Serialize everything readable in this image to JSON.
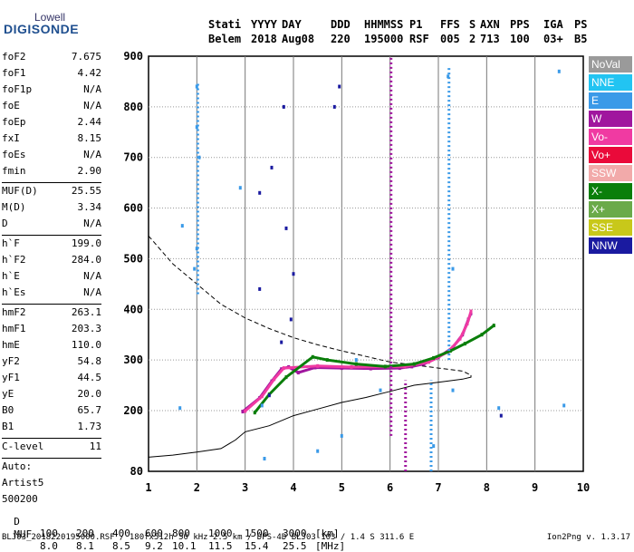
{
  "logo": {
    "line1": "Lowell",
    "line2": "DIGISONDE"
  },
  "header": {
    "labels": [
      "Stati",
      "YYYY",
      "DAY",
      "DDD",
      "HHMMSS",
      "P1",
      "FFS",
      "S",
      "AXN",
      "PPS",
      "IGA",
      "PS"
    ],
    "values": [
      "Belem",
      "2018",
      "Aug08",
      "220",
      "195000",
      "RSF",
      "005",
      "2",
      "713",
      "100",
      "03+",
      "B5"
    ]
  },
  "params": [
    {
      "group": [
        {
          "name": "foF2",
          "value": "7.675"
        },
        {
          "name": "foF1",
          "value": "4.42"
        },
        {
          "name": "foF1p",
          "value": "N/A"
        },
        {
          "name": "foE",
          "value": "N/A"
        },
        {
          "name": "foEp",
          "value": "2.44"
        },
        {
          "name": "fxI",
          "value": "8.15"
        },
        {
          "name": "foEs",
          "value": "N/A"
        },
        {
          "name": "fmin",
          "value": "2.90"
        }
      ]
    },
    {
      "group": [
        {
          "name": "MUF(D)",
          "value": "25.55"
        },
        {
          "name": "M(D)",
          "value": "3.34"
        },
        {
          "name": "D",
          "value": "N/A"
        }
      ]
    },
    {
      "group": [
        {
          "name": "h`F",
          "value": "199.0"
        },
        {
          "name": "h`F2",
          "value": "284.0"
        },
        {
          "name": "h`E",
          "value": "N/A"
        },
        {
          "name": "h`Es",
          "value": "N/A"
        }
      ]
    },
    {
      "group": [
        {
          "name": "hmF2",
          "value": "263.1"
        },
        {
          "name": "hmF1",
          "value": "203.3"
        },
        {
          "name": "hmE",
          "value": "110.0"
        },
        {
          "name": "yF2",
          "value": "54.8"
        },
        {
          "name": "yF1",
          "value": "44.5"
        },
        {
          "name": "yE",
          "value": "20.0"
        },
        {
          "name": "B0",
          "value": "65.7"
        },
        {
          "name": "B1",
          "value": "1.73"
        }
      ]
    },
    {
      "group": [
        {
          "name": "C-level",
          "value": "11"
        }
      ]
    },
    {
      "group": [
        {
          "name": "Auto:",
          "value": ""
        },
        {
          "name": "Artist5",
          "value": ""
        },
        {
          "name": "500200",
          "value": ""
        }
      ]
    }
  ],
  "legend": [
    {
      "label": "NoVal",
      "color": "#9a9a9a"
    },
    {
      "label": "NNE",
      "color": "#22c4f2"
    },
    {
      "label": "E",
      "color": "#3a9ae8"
    },
    {
      "label": "W",
      "color": "#a0169e"
    },
    {
      "label": "Vo-",
      "color": "#f03aa2"
    },
    {
      "label": "Vo+",
      "color": "#ea0a3a"
    },
    {
      "label": "SSW",
      "color": "#f2aaaa"
    },
    {
      "label": "X-",
      "color": "#0a7e0a"
    },
    {
      "label": "X+",
      "color": "#6aaa4a"
    },
    {
      "label": "SSE",
      "color": "#c8c81a"
    },
    {
      "label": "NNW",
      "color": "#1a1aa0"
    }
  ],
  "mufTable": {
    "row1_label": "D",
    "row1_values": [
      "100",
      "200",
      "400",
      "600",
      "800",
      "1000",
      "1500",
      "3000"
    ],
    "row1_unit": "[km]",
    "row2_label": "MUF",
    "row2_values": [
      "8.0",
      "8.1",
      "8.5",
      "9.2",
      "10.1",
      "11.5",
      "15.4",
      "25.5"
    ],
    "row2_unit": "[MHz]"
  },
  "footer": {
    "left": "BLJ03_2018220195000.RSF / 180fx512h 50 kHz 2.5 km / DPS-4D BLJ03 103 / 1.4 S 311.6 E",
    "right": "Ion2Png v. 1.3.17"
  },
  "chart_data": {
    "type": "scatter",
    "title": "",
    "xlabel": "",
    "ylabel": "",
    "xlim": [
      1,
      10
    ],
    "ylim": [
      80,
      900
    ],
    "x_ticks": [
      "1",
      "2",
      "3",
      "4",
      "5",
      "6",
      "7",
      "8",
      "9",
      "10"
    ],
    "y_ticks": [
      "80",
      "200",
      "300",
      "400",
      "500",
      "600",
      "700",
      "800",
      "900"
    ],
    "grid": true,
    "legend_position": "right",
    "series": [
      {
        "name": "W",
        "color": "#a0169e",
        "points": [
          [
            2.95,
            198
          ],
          [
            3.3,
            225
          ],
          [
            3.55,
            258
          ],
          [
            3.75,
            282
          ],
          [
            3.9,
            286
          ],
          [
            4.1,
            275
          ],
          [
            4.45,
            285
          ],
          [
            5.0,
            284
          ],
          [
            5.6,
            283
          ],
          [
            6.2,
            284
          ],
          [
            6.45,
            287
          ],
          [
            6.7,
            292
          ],
          [
            7.0,
            305
          ],
          [
            7.3,
            325
          ],
          [
            7.5,
            350
          ],
          [
            7.62,
            380
          ],
          [
            7.675,
            392
          ]
        ]
      },
      {
        "name": "Vo-",
        "color": "#f03aa2",
        "points": [
          [
            3.0,
            199
          ],
          [
            3.35,
            228
          ],
          [
            3.6,
            262
          ],
          [
            3.8,
            284
          ],
          [
            4.5,
            288
          ],
          [
            5.2,
            286
          ],
          [
            6.3,
            287
          ],
          [
            6.8,
            296
          ],
          [
            7.2,
            316
          ],
          [
            7.45,
            342
          ],
          [
            7.6,
            372
          ],
          [
            7.675,
            396
          ]
        ]
      },
      {
        "name": "X-",
        "color": "#0a7e0a",
        "points": [
          [
            3.2,
            196
          ],
          [
            3.5,
            232
          ],
          [
            3.85,
            266
          ],
          [
            4.4,
            306
          ],
          [
            4.7,
            300
          ],
          [
            5.3,
            292
          ],
          [
            5.9,
            287
          ],
          [
            6.5,
            292
          ],
          [
            6.9,
            304
          ],
          [
            7.25,
            318
          ],
          [
            7.55,
            332
          ],
          [
            7.9,
            350
          ],
          [
            8.15,
            368
          ]
        ]
      },
      {
        "name": "E",
        "color": "#3a9ae8",
        "points": [
          [
            2.0,
            840
          ],
          [
            2.0,
            760
          ],
          [
            2.05,
            700
          ],
          [
            2.0,
            520
          ],
          [
            1.95,
            480
          ],
          [
            1.7,
            565
          ],
          [
            1.65,
            205
          ],
          [
            2.9,
            640
          ],
          [
            3.35,
            210
          ],
          [
            3.4,
            105
          ],
          [
            4.5,
            120
          ],
          [
            5.0,
            150
          ],
          [
            5.3,
            300
          ],
          [
            5.8,
            240
          ],
          [
            6.9,
            130
          ],
          [
            7.2,
            860
          ],
          [
            7.3,
            480
          ],
          [
            7.3,
            240
          ],
          [
            8.25,
            205
          ],
          [
            9.5,
            870
          ],
          [
            9.6,
            210
          ]
        ]
      },
      {
        "name": "NNW",
        "color": "#1a1aa0",
        "points": [
          [
            3.3,
            630
          ],
          [
            3.55,
            680
          ],
          [
            3.8,
            800
          ],
          [
            3.85,
            560
          ],
          [
            4.0,
            470
          ],
          [
            3.95,
            380
          ],
          [
            3.75,
            335
          ],
          [
            4.85,
            800
          ],
          [
            4.95,
            840
          ],
          [
            3.3,
            440
          ],
          [
            3.5,
            230
          ],
          [
            8.3,
            190
          ]
        ]
      }
    ],
    "curves": [
      {
        "name": "true_height_profile",
        "style": "solid",
        "points": [
          [
            1.0,
            108
          ],
          [
            1.5,
            112
          ],
          [
            2.0,
            118
          ],
          [
            2.5,
            125
          ],
          [
            2.8,
            142
          ],
          [
            3.0,
            158
          ],
          [
            3.5,
            170
          ],
          [
            4.0,
            190
          ],
          [
            4.5,
            203
          ],
          [
            5.0,
            216
          ],
          [
            5.5,
            226
          ],
          [
            6.0,
            238
          ],
          [
            6.5,
            250
          ],
          [
            7.0,
            256
          ],
          [
            7.5,
            262
          ],
          [
            7.675,
            266
          ],
          [
            7.675,
            270
          ]
        ]
      },
      {
        "name": "model_profile",
        "style": "dashed",
        "points": [
          [
            1.0,
            545
          ],
          [
            1.5,
            490
          ],
          [
            2.0,
            450
          ],
          [
            2.5,
            410
          ],
          [
            3.0,
            383
          ],
          [
            3.5,
            362
          ],
          [
            4.0,
            344
          ],
          [
            4.5,
            330
          ],
          [
            5.0,
            318
          ],
          [
            5.5,
            307
          ],
          [
            6.0,
            296
          ],
          [
            6.5,
            290
          ],
          [
            7.0,
            284
          ],
          [
            7.5,
            278
          ],
          [
            7.675,
            270
          ]
        ]
      }
    ]
  }
}
